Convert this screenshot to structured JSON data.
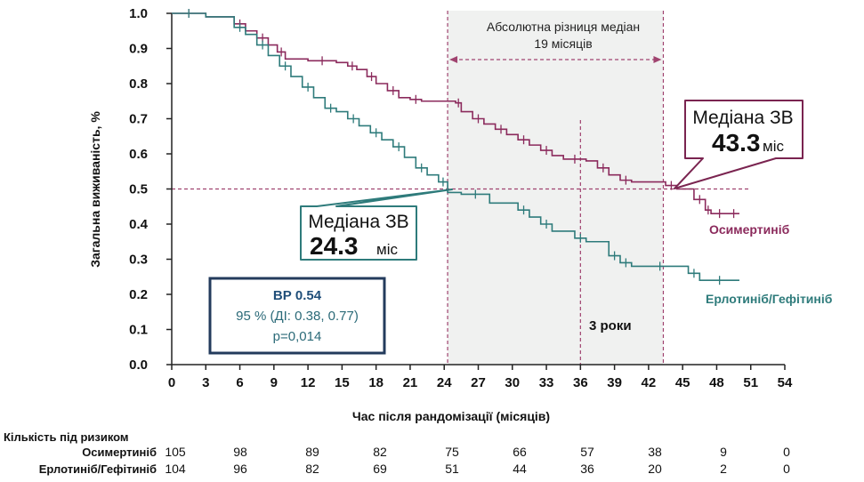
{
  "chart_data": {
    "type": "line",
    "title": "",
    "xlabel": "Час після рандомізації (місяців)",
    "ylabel": "Загальна виживаність, %",
    "xlim": [
      0,
      54
    ],
    "ylim": [
      0,
      1.0
    ],
    "x_ticks": [
      0,
      3,
      6,
      9,
      12,
      15,
      18,
      21,
      24,
      27,
      30,
      33,
      36,
      39,
      42,
      45,
      48,
      51,
      54
    ],
    "y_ticks": [
      "0.0",
      "0.1",
      "0.2",
      "0.3",
      "0.4",
      "0.5",
      "0.6",
      "0.7",
      "0.8",
      "0.9",
      "1.0"
    ],
    "grid": false,
    "series": [
      {
        "name": "Осимертиніб",
        "color": "#8b2a5c",
        "x": [
          0,
          3,
          5.5,
          6.5,
          7.5,
          8.5,
          9.3,
          10,
          12,
          14.5,
          15.5,
          16.3,
          17.2,
          18,
          19,
          20,
          21,
          22,
          25,
          25.5,
          26.5,
          27.5,
          28.5,
          29.5,
          30.5,
          31.5,
          32.5,
          33.5,
          34.5,
          36.5,
          37.5,
          38.5,
          39.5,
          40.5,
          43.5,
          44.5,
          46,
          47,
          47.5,
          49,
          50
        ],
        "y": [
          1.0,
          0.99,
          0.97,
          0.95,
          0.93,
          0.91,
          0.89,
          0.87,
          0.865,
          0.86,
          0.85,
          0.84,
          0.82,
          0.8,
          0.78,
          0.76,
          0.755,
          0.75,
          0.745,
          0.72,
          0.7,
          0.685,
          0.67,
          0.655,
          0.64,
          0.625,
          0.61,
          0.595,
          0.585,
          0.58,
          0.56,
          0.54,
          0.525,
          0.52,
          0.51,
          0.5,
          0.47,
          0.44,
          0.43,
          0.43,
          0.43
        ]
      },
      {
        "name": "Ерлотиніб/Гефітиніб",
        "color": "#2e7b7b",
        "x": [
          0,
          3,
          5.5,
          6.5,
          7.5,
          8.5,
          9.5,
          10.5,
          11.5,
          12.5,
          13.5,
          14.5,
          15.5,
          16.5,
          17.5,
          18.5,
          19.5,
          20.5,
          21.5,
          22.5,
          23.5,
          24.3,
          25.5,
          28,
          30.5,
          31.5,
          32.5,
          33.5,
          35.5,
          36.5,
          38.5,
          39.5,
          40.5,
          45.5,
          46.5,
          50
        ],
        "y": [
          1.0,
          0.99,
          0.96,
          0.94,
          0.91,
          0.88,
          0.85,
          0.82,
          0.79,
          0.76,
          0.73,
          0.72,
          0.7,
          0.68,
          0.66,
          0.64,
          0.62,
          0.59,
          0.56,
          0.54,
          0.52,
          0.49,
          0.485,
          0.46,
          0.44,
          0.42,
          0.4,
          0.38,
          0.36,
          0.35,
          0.31,
          0.29,
          0.28,
          0.26,
          0.24,
          0.24
        ]
      }
    ],
    "annotations": {
      "diff_title": "Абсолютна різниця медіан",
      "diff_value": "19 місяців",
      "median_osim_label": "Медіана ЗВ",
      "median_osim_value": "43.3",
      "median_osim_unit": "міс",
      "median_comp_label": "Медіана ЗВ",
      "median_comp_value": "24.3",
      "median_comp_unit": "міс",
      "three_years": "3 роки",
      "hr_label": "ВР 0.54",
      "hr_ci": "95 % (ДІ: 0.38, 0.77)",
      "hr_p": "p=0,014"
    },
    "risk_table": {
      "title": "Кількість під ризиком",
      "rows": [
        {
          "name": "Осимертиніб",
          "color": "#8b2a5c",
          "values": [
            105,
            98,
            89,
            82,
            75,
            66,
            57,
            38,
            9,
            0
          ]
        },
        {
          "name": "Ерлотиніб/Гефітиніб",
          "color": "#2e7b7b",
          "values": [
            104,
            96,
            82,
            69,
            51,
            44,
            36,
            20,
            2,
            0
          ]
        }
      ],
      "times": [
        0,
        6,
        12,
        18,
        24,
        30,
        36,
        42,
        48,
        54
      ]
    }
  }
}
